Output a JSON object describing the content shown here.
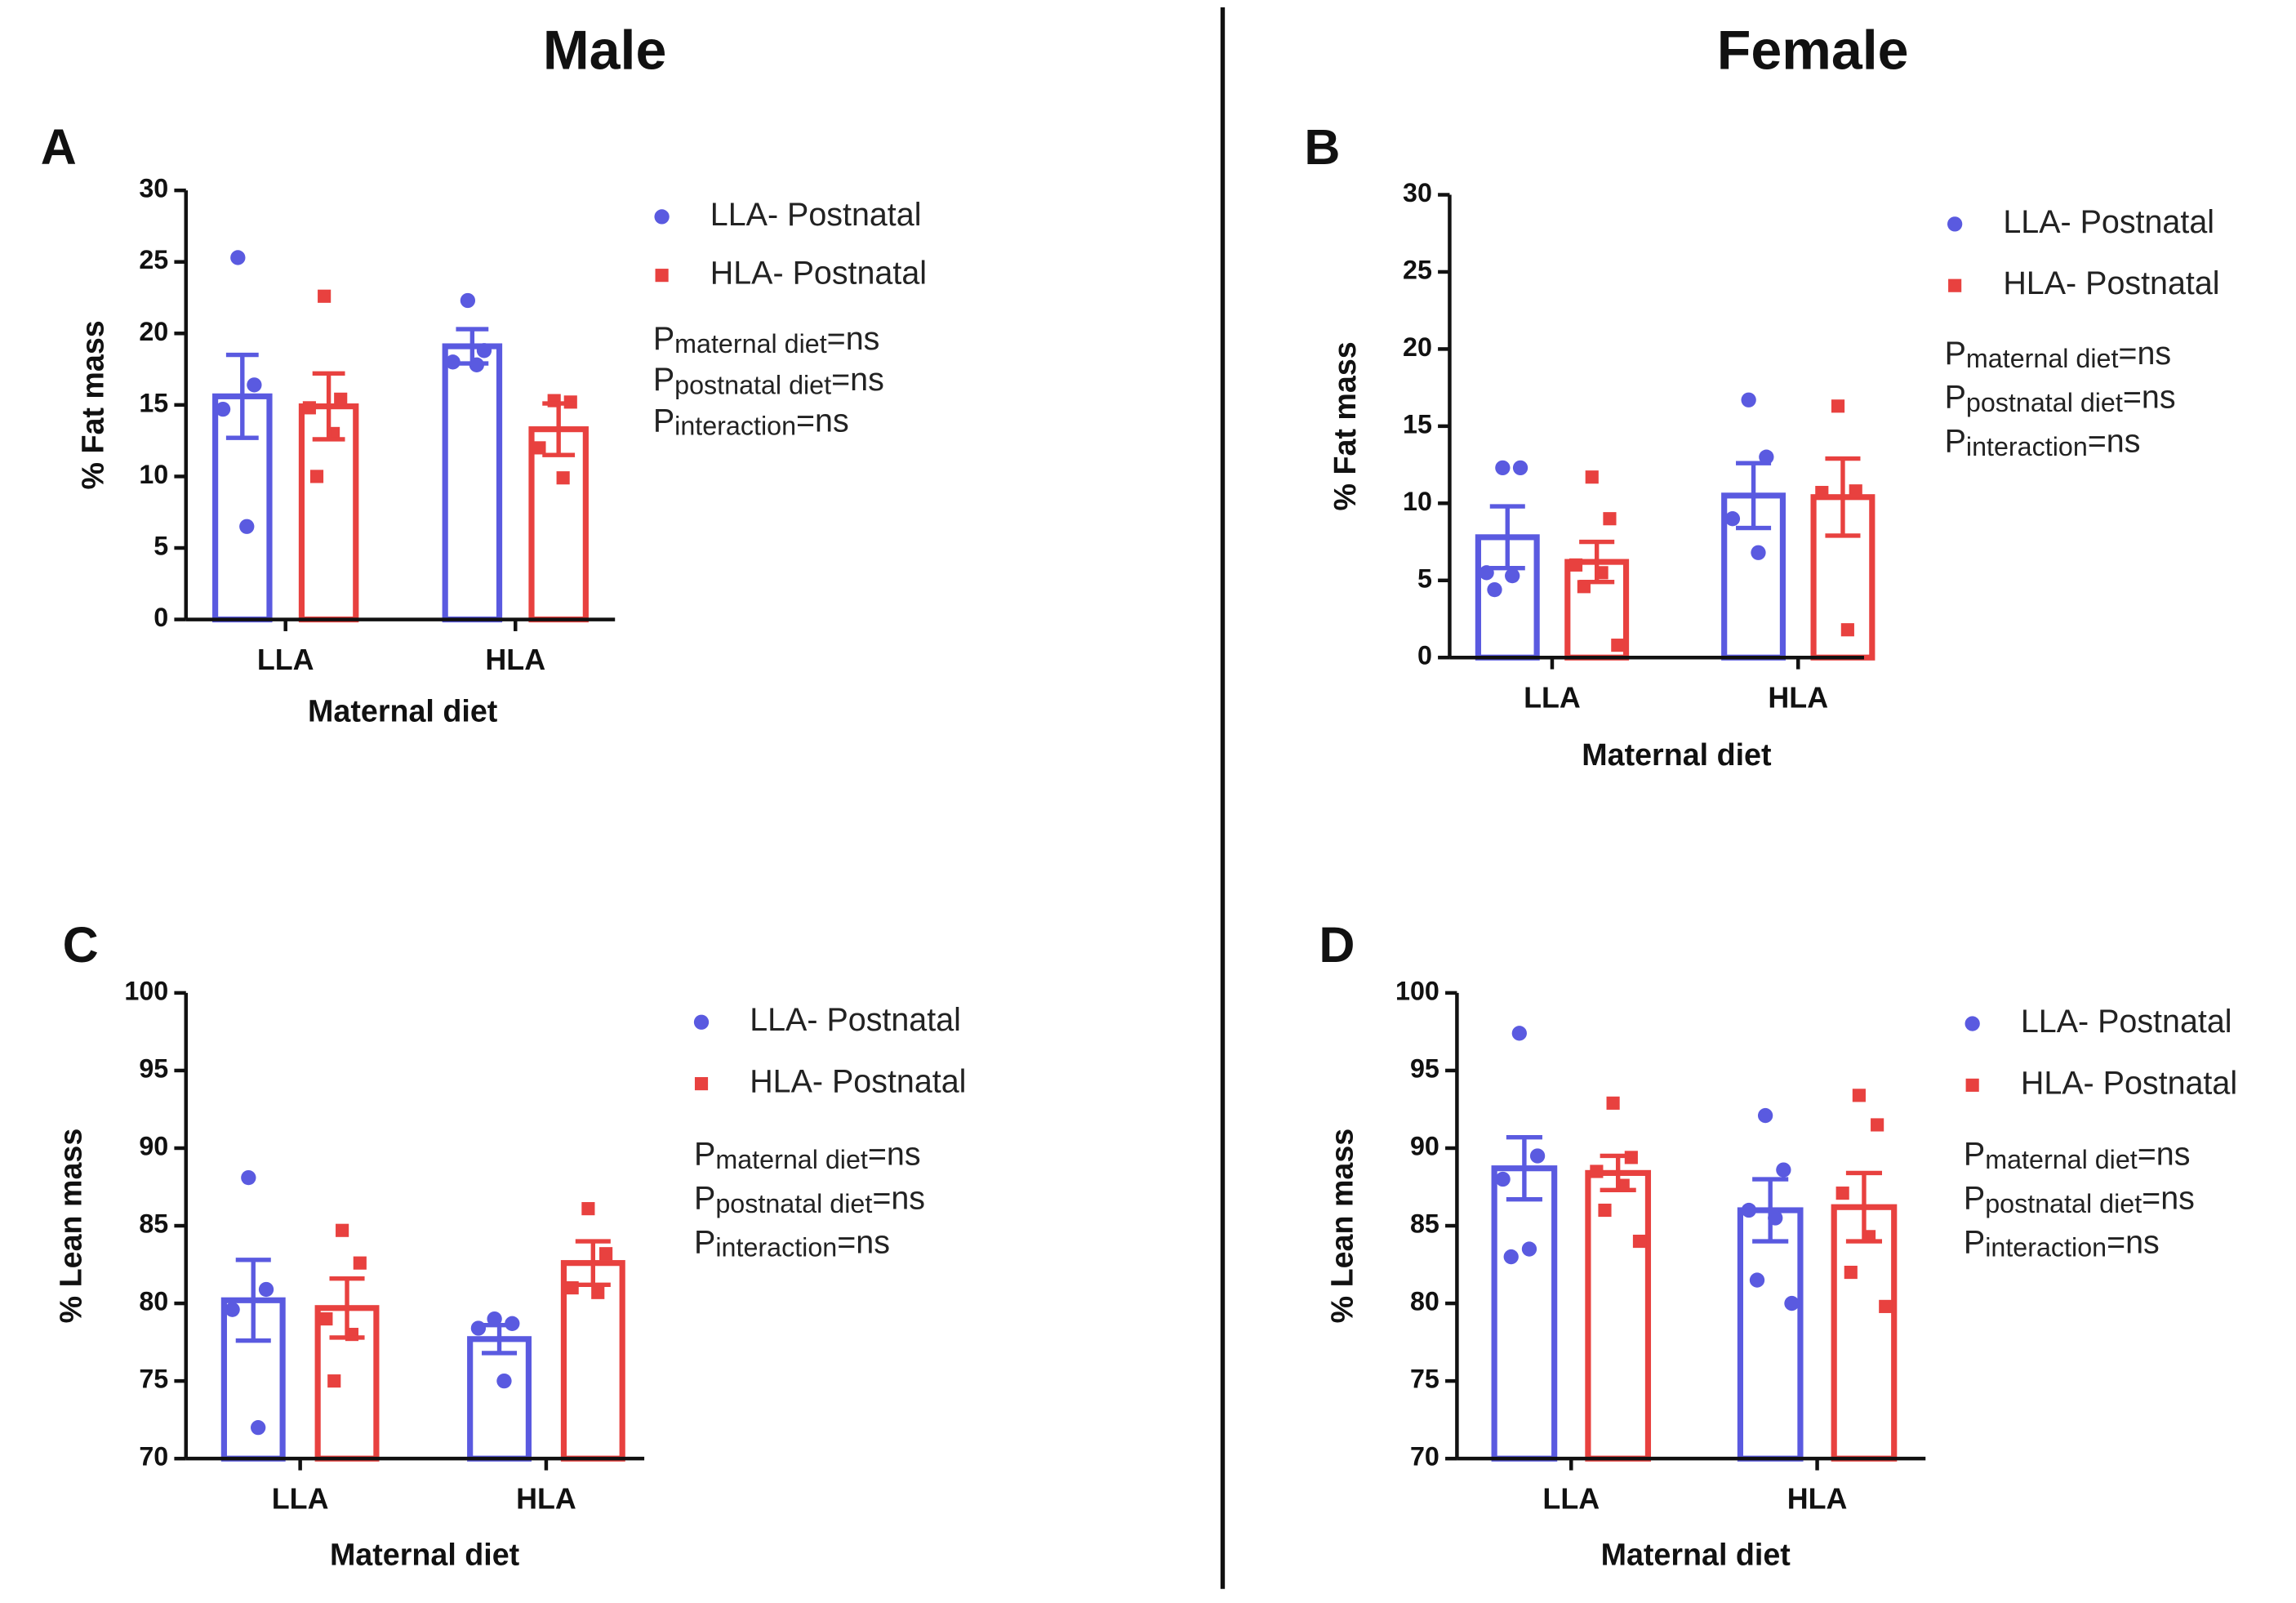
{
  "headers": [
    "Male",
    "Female"
  ],
  "chart_data": [
    {
      "type": "bar",
      "label": "A",
      "ylabel": "% Fat mass",
      "xlabel": "Maternal diet",
      "categories": [
        "LLA",
        "HLA"
      ],
      "ylim": [
        0,
        30
      ],
      "yticks": [
        0,
        5,
        10,
        15,
        20,
        25,
        30
      ],
      "series": [
        {
          "name": "LLA- Postnatal",
          "color": "#5a5ae0",
          "marker": "circle",
          "values": [
            15.6,
            19.1
          ],
          "errors": [
            2.9,
            1.2
          ],
          "points": [
            [
              25.3,
              16.4,
              14.7,
              6.5
            ],
            [
              22.3,
              18.8,
              18.0,
              17.8
            ]
          ]
        },
        {
          "name": "HLA- Postnatal",
          "color": "#e8413f",
          "marker": "square",
          "values": [
            14.9,
            13.3
          ],
          "errors": [
            2.3,
            1.8
          ],
          "points": [
            [
              22.6,
              15.4,
              14.8,
              13.0,
              10.0
            ],
            [
              15.3,
              15.2,
              12.0,
              9.9
            ]
          ]
        }
      ],
      "annotations": [
        {
          "symbol": "P",
          "subscript": "maternal diet",
          "text": "=ns"
        },
        {
          "symbol": "P",
          "subscript": "postnatal diet",
          "text": "=ns"
        },
        {
          "symbol": "P",
          "subscript": "interaction",
          "text": "=ns"
        }
      ]
    },
    {
      "type": "bar",
      "label": "B",
      "ylabel": "% Fat mass",
      "xlabel": "Maternal diet",
      "categories": [
        "LLA",
        "HLA"
      ],
      "ylim": [
        0,
        30
      ],
      "yticks": [
        0,
        5,
        10,
        15,
        20,
        25,
        30
      ],
      "series": [
        {
          "name": "LLA- Postnatal",
          "color": "#5a5ae0",
          "marker": "circle",
          "values": [
            7.8,
            10.5
          ],
          "errors": [
            2.0,
            2.1
          ],
          "points": [
            [
              12.3,
              12.3,
              5.5,
              5.3,
              4.4
            ],
            [
              16.7,
              13.0,
              9.0,
              6.8
            ]
          ]
        },
        {
          "name": "HLA- Postnatal",
          "color": "#e8413f",
          "marker": "square",
          "values": [
            6.2,
            10.4
          ],
          "errors": [
            1.3,
            2.5
          ],
          "points": [
            [
              11.7,
              9.0,
              6.0,
              5.5,
              4.6,
              0.8
            ],
            [
              16.3,
              10.8,
              10.7,
              1.8
            ]
          ]
        }
      ],
      "annotations": [
        {
          "symbol": "P",
          "subscript": "maternal diet",
          "text": "=ns"
        },
        {
          "symbol": "P",
          "subscript": "postnatal diet",
          "text": "=ns"
        },
        {
          "symbol": "P",
          "subscript": "interaction",
          "text": "=ns"
        }
      ]
    },
    {
      "type": "bar",
      "label": "C",
      "ylabel": "% Lean mass",
      "xlabel": "Maternal diet",
      "categories": [
        "LLA",
        "HLA"
      ],
      "ylim": [
        70,
        100
      ],
      "yticks": [
        70,
        75,
        80,
        85,
        90,
        95,
        100
      ],
      "series": [
        {
          "name": "LLA- Postnatal",
          "color": "#5a5ae0",
          "marker": "circle",
          "values": [
            80.2,
            77.7
          ],
          "errors": [
            2.6,
            0.9
          ],
          "points": [
            [
              88.1,
              80.9,
              79.6,
              72.0
            ],
            [
              79.0,
              78.7,
              78.4,
              75.0
            ]
          ]
        },
        {
          "name": "HLA- Postnatal",
          "color": "#e8413f",
          "marker": "square",
          "values": [
            79.7,
            82.6
          ],
          "errors": [
            1.9,
            1.4
          ],
          "points": [
            [
              84.7,
              82.6,
              79.0,
              78.0,
              75.0
            ],
            [
              86.1,
              83.2,
              81.0,
              80.7
            ]
          ]
        }
      ],
      "annotations": [
        {
          "symbol": "P",
          "subscript": "maternal diet",
          "text": "=ns"
        },
        {
          "symbol": "P",
          "subscript": "postnatal diet",
          "text": "=ns"
        },
        {
          "symbol": "P",
          "subscript": "interaction",
          "text": "=ns"
        }
      ]
    },
    {
      "type": "bar",
      "label": "D",
      "ylabel": "% Lean mass",
      "xlabel": "Maternal diet",
      "categories": [
        "LLA",
        "HLA"
      ],
      "ylim": [
        70,
        100
      ],
      "yticks": [
        70,
        75,
        80,
        85,
        90,
        95,
        100
      ],
      "series": [
        {
          "name": "LLA- Postnatal",
          "color": "#5a5ae0",
          "marker": "circle",
          "values": [
            88.7,
            86.0
          ],
          "errors": [
            2.0,
            2.0
          ],
          "points": [
            [
              97.4,
              89.5,
              88.0,
              83.5,
              83.0
            ],
            [
              92.1,
              88.6,
              86.0,
              85.5,
              81.5,
              80.0
            ]
          ]
        },
        {
          "name": "HLA- Postnatal",
          "color": "#e8413f",
          "marker": "square",
          "values": [
            88.4,
            86.2
          ],
          "errors": [
            1.1,
            2.2
          ],
          "points": [
            [
              92.9,
              89.4,
              88.5,
              87.6,
              86.0,
              84.0
            ],
            [
              93.4,
              91.5,
              87.1,
              84.3,
              82.0,
              79.8
            ]
          ]
        }
      ],
      "annotations": [
        {
          "symbol": "P",
          "subscript": "maternal diet",
          "text": "=ns"
        },
        {
          "symbol": "P",
          "subscript": "postnatal diet",
          "text": "=ns"
        },
        {
          "symbol": "P",
          "subscript": "interaction",
          "text": "=ns"
        }
      ]
    }
  ]
}
